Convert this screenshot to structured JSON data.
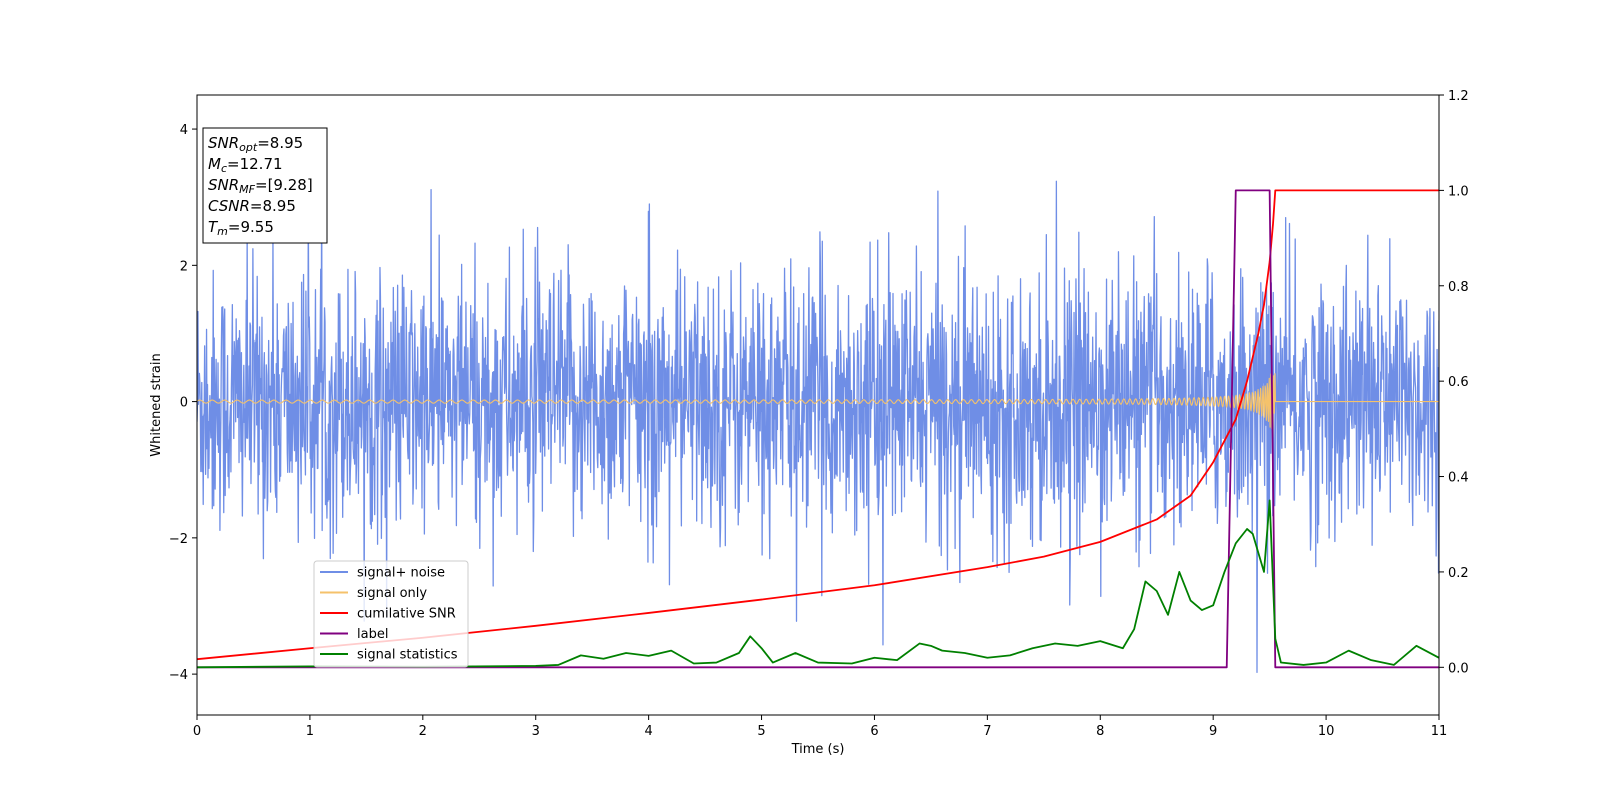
{
  "chart_data": {
    "type": "line",
    "title": "",
    "xlabel": "Time (s)",
    "ylabel": "Whitened strain",
    "xlim": [
      0,
      11
    ],
    "ylim_left": [
      -4.6,
      4.5
    ],
    "ylim_right": [
      -0.1,
      1.2
    ],
    "x_ticks": [
      "0",
      "1",
      "2",
      "3",
      "4",
      "5",
      "6",
      "7",
      "8",
      "9",
      "10",
      "11"
    ],
    "y_ticks_left": [
      "−4",
      "−2",
      "0",
      "2",
      "4"
    ],
    "y_ticks_right": [
      "0.0",
      "0.2",
      "0.4",
      "0.6",
      "0.8",
      "1.0",
      "1.2"
    ],
    "grid": false,
    "legend_position": "lower-left",
    "annotation": {
      "lines": [
        {
          "base": "SNR",
          "sub": "opt",
          "value": "=8.95"
        },
        {
          "base": "M",
          "sub": "c",
          "value": "=12.71"
        },
        {
          "base": "SNR",
          "sub": "MF",
          "value": "=[9.28]"
        },
        {
          "base": "CSNR",
          "sub": "",
          "value": "=8.95"
        },
        {
          "base": "T",
          "sub": "m",
          "value": "=9.55"
        }
      ]
    },
    "series": [
      {
        "name": "signal+ noise",
        "axis": "left",
        "color": "#6f8ee6",
        "kind": "noise",
        "noise_std": 0.95,
        "x_range": [
          0,
          11
        ]
      },
      {
        "name": "signal only",
        "axis": "left",
        "color": "#f5c26b",
        "kind": "chirp",
        "merger_time": 9.55,
        "start_amplitude": 0.02,
        "end_amplitude": 0.75
      },
      {
        "name": "cumilative SNR",
        "axis": "right",
        "color": "#ff0000",
        "x": [
          0,
          1,
          2,
          3,
          4,
          5,
          6,
          7,
          7.5,
          8,
          8.5,
          8.8,
          9.0,
          9.2,
          9.3,
          9.4,
          9.45,
          9.5,
          9.53,
          9.55,
          11
        ],
        "y": [
          0.017,
          0.04,
          0.062,
          0.087,
          0.114,
          0.142,
          0.172,
          0.21,
          0.232,
          0.263,
          0.31,
          0.36,
          0.43,
          0.52,
          0.6,
          0.7,
          0.76,
          0.85,
          0.93,
          1.0,
          1.0
        ]
      },
      {
        "name": "label",
        "axis": "right",
        "color": "#800080",
        "x": [
          0,
          9.12,
          9.2,
          9.5,
          9.55,
          11
        ],
        "y": [
          0,
          0,
          1.0,
          1.0,
          0,
          0
        ]
      },
      {
        "name": "signal statistics",
        "axis": "right",
        "color": "#008000",
        "x": [
          0,
          1,
          2,
          3,
          3.2,
          3.4,
          3.6,
          3.8,
          4.0,
          4.2,
          4.4,
          4.6,
          4.8,
          4.9,
          5.0,
          5.1,
          5.3,
          5.5,
          5.8,
          6.0,
          6.2,
          6.4,
          6.5,
          6.6,
          6.8,
          7.0,
          7.2,
          7.4,
          7.6,
          7.8,
          8.0,
          8.2,
          8.3,
          8.4,
          8.5,
          8.6,
          8.7,
          8.8,
          8.9,
          9.0,
          9.1,
          9.2,
          9.3,
          9.35,
          9.4,
          9.45,
          9.5,
          9.55,
          9.6,
          9.8,
          10.0,
          10.2,
          10.4,
          10.6,
          10.8,
          11
        ],
        "y": [
          0.0,
          0.002,
          0.001,
          0.003,
          0.005,
          0.025,
          0.018,
          0.03,
          0.024,
          0.035,
          0.008,
          0.01,
          0.03,
          0.065,
          0.04,
          0.01,
          0.03,
          0.01,
          0.008,
          0.02,
          0.015,
          0.05,
          0.045,
          0.035,
          0.03,
          0.02,
          0.025,
          0.04,
          0.05,
          0.045,
          0.055,
          0.04,
          0.08,
          0.18,
          0.16,
          0.11,
          0.2,
          0.14,
          0.12,
          0.13,
          0.2,
          0.26,
          0.29,
          0.28,
          0.24,
          0.2,
          0.35,
          0.06,
          0.01,
          0.005,
          0.01,
          0.035,
          0.015,
          0.005,
          0.045,
          0.02
        ]
      }
    ]
  }
}
